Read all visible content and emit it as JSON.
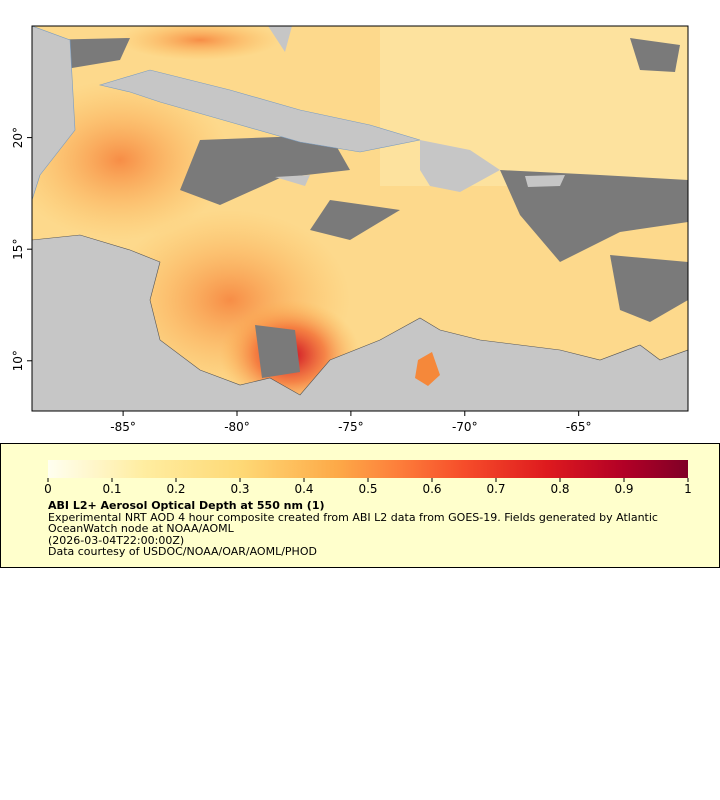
{
  "map": {
    "xlim": [
      -89,
      -60.2
    ],
    "ylim": [
      7.75,
      25
    ],
    "xticks": [
      {
        "value": -85,
        "label": "-85°"
      },
      {
        "value": -80,
        "label": "-80°"
      },
      {
        "value": -75,
        "label": "-75°"
      },
      {
        "value": -70,
        "label": "-70°"
      },
      {
        "value": -65,
        "label": "-65°"
      }
    ],
    "yticks": [
      {
        "value": 10,
        "label": "10°"
      },
      {
        "value": 15,
        "label": "15°"
      },
      {
        "value": 20,
        "label": "20°"
      }
    ]
  },
  "legend": {
    "clim": [
      0,
      1
    ],
    "ticks": [
      0,
      0.1,
      0.2,
      0.3,
      0.4,
      0.5,
      0.6,
      0.7,
      0.8,
      0.9,
      1
    ],
    "title": "ABI L2+ Aerosol Optical Depth at 550 nm (1)",
    "description": "Experimental NRT AOD 4 hour composite created from ABI L2 data from GOES-19. Fields generated by Atlantic OceanWatch node at NOAA/AOML",
    "time": "(2026-03-04T22:00:00Z)",
    "credit": "Data courtesy of USDOC/NOAA/OAR/AOML/PHOD"
  }
}
